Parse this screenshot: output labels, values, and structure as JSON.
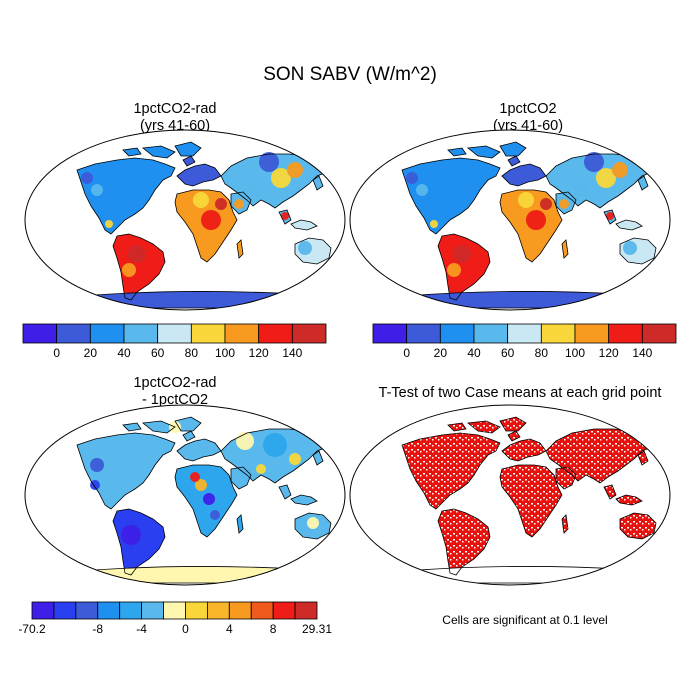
{
  "figure": {
    "title": "SON SABV (W/m^2)"
  },
  "panels": [
    {
      "id": "p1",
      "title_lines": [
        "1pctCO2-rad",
        "(yrs 41-60)"
      ],
      "field": "case1"
    },
    {
      "id": "p2",
      "title_lines": [
        "1pctCO2",
        "(yrs 41-60)"
      ],
      "field": "case2"
    },
    {
      "id": "p3",
      "title_lines": [
        "1pctCO2-rad",
        "- 1pctCO2"
      ],
      "field": "diff"
    },
    {
      "id": "p4",
      "title_lines": [
        "T-Test of two Case means at each grid point"
      ],
      "field": "ttest"
    }
  ],
  "colorbars": {
    "absolute": {
      "colors": [
        "#3f1fe8",
        "#3d5bd8",
        "#1f8ff0",
        "#59b8ec",
        "#c9e8f4",
        "#f9d73a",
        "#f89a1f",
        "#ef1c17",
        "#cd2a28"
      ],
      "labels": [
        "0",
        "20",
        "40",
        "60",
        "80",
        "100",
        "120",
        "140"
      ]
    },
    "difference": {
      "colors": [
        "#3f1fe8",
        "#2a3ff0",
        "#3d5bd8",
        "#1f8ff0",
        "#2ea6ee",
        "#59b8ec",
        "#fff7b0",
        "#f9d73a",
        "#f8b52a",
        "#f89a1f",
        "#f05a1a",
        "#ef1c17",
        "#cd2a28"
      ],
      "labels": [
        "-70.2",
        "-8",
        "-4",
        "0",
        "4",
        "8",
        "29.31"
      ],
      "label_slots": [
        0,
        3,
        5,
        7,
        9,
        11,
        13
      ]
    }
  },
  "significance_note": "Cells are significant at 0.1 level",
  "colors": {
    "ocean": "#ffffff",
    "coast": "#000000",
    "significant": "#e8120e"
  }
}
